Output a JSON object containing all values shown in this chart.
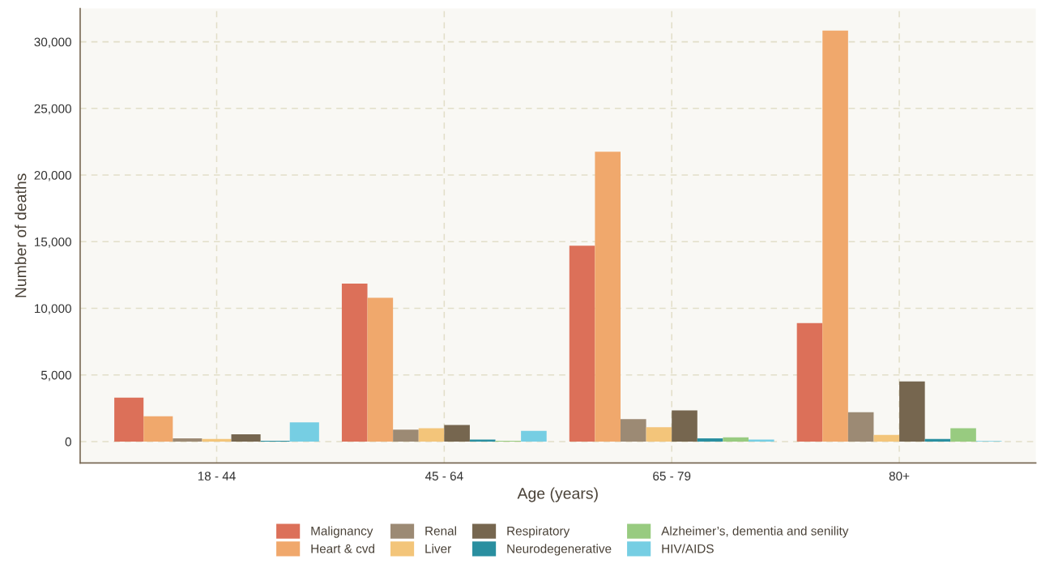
{
  "chart_data": {
    "type": "bar",
    "xlabel": "Age (years)",
    "ylabel": "Number of deaths",
    "categories": [
      "18 - 44",
      "45 - 64",
      "65 - 79",
      "80+"
    ],
    "series": [
      {
        "name": "Malignancy",
        "color": "#dc7059",
        "values": [
          3300,
          11850,
          14700,
          8900
        ]
      },
      {
        "name": "Heart & cvd",
        "color": "#f0a86c",
        "values": [
          1900,
          10800,
          21750,
          30850
        ]
      },
      {
        "name": "Renal",
        "color": "#9c8a74",
        "values": [
          250,
          900,
          1690,
          2200
        ]
      },
      {
        "name": "Liver",
        "color": "#f3c57a",
        "values": [
          200,
          1000,
          1080,
          500
        ]
      },
      {
        "name": "Respiratory",
        "color": "#76664f",
        "values": [
          550,
          1250,
          2340,
          4510
        ]
      },
      {
        "name": "Neurodegenerative",
        "color": "#2a8fa0",
        "values": [
          60,
          150,
          250,
          200
        ]
      },
      {
        "name": "Alzheimer’s, dementia and senility",
        "color": "#98cb80",
        "values": [
          null,
          60,
          320,
          1000
        ]
      },
      {
        "name": "HIV/AIDS",
        "color": "#76cee3",
        "values": [
          1450,
          800,
          150,
          50
        ]
      }
    ],
    "ylim": [
      -1600,
      32500
    ],
    "yticks": [
      0,
      {
        "value": 5000,
        "label": "5,000"
      },
      {
        "value": 10000,
        "label": "10,000"
      },
      {
        "value": 15000,
        "label": "15,000"
      },
      {
        "value": 20000,
        "label": "20,000"
      },
      {
        "value": 25000,
        "label": "25,000"
      },
      {
        "value": 30000,
        "label": "30,000"
      }
    ],
    "grid": true,
    "legend": "bottom"
  }
}
